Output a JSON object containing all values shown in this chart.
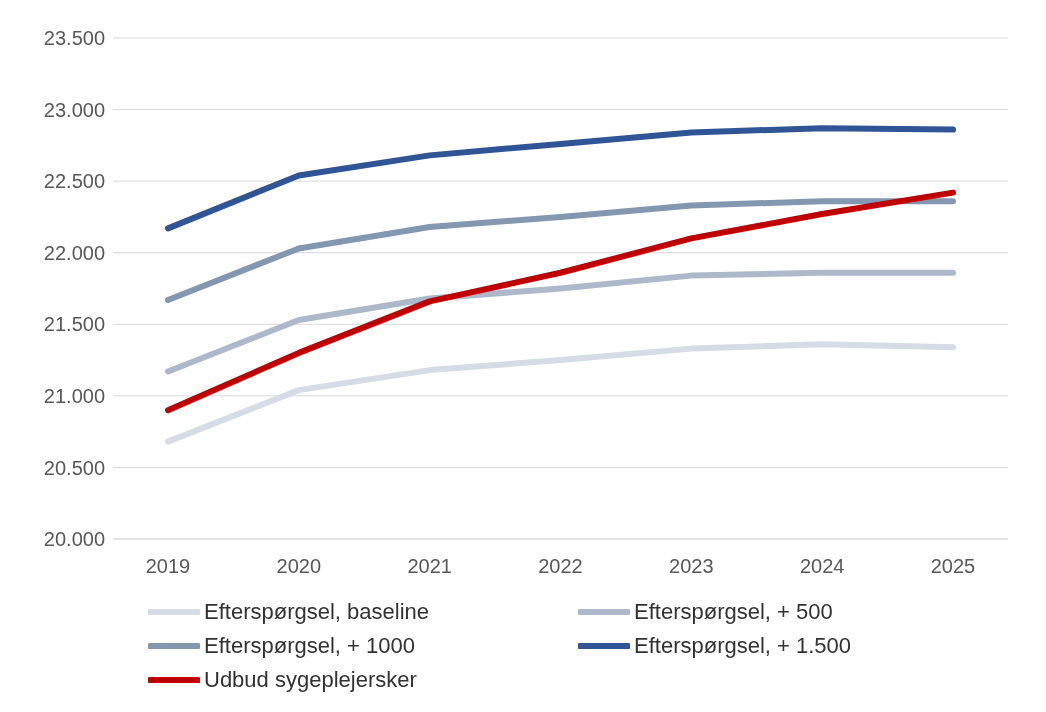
{
  "chart_data": {
    "type": "line",
    "categories": [
      "2019",
      "2020",
      "2021",
      "2022",
      "2023",
      "2024",
      "2025"
    ],
    "series": [
      {
        "name": "Efterspørgsel, baseline",
        "color": "#d6dce5",
        "values": [
          20680,
          21040,
          21180,
          21250,
          21330,
          21360,
          21340
        ]
      },
      {
        "name": "Efterspørgsel, + 500",
        "color": "#adb9ca",
        "values": [
          21170,
          21530,
          21680,
          21750,
          21840,
          21860,
          21860
        ]
      },
      {
        "name": "Efterspørgsel, + 1000",
        "color": "#8497b0",
        "values": [
          21670,
          22030,
          22180,
          22250,
          22330,
          22360,
          22360
        ]
      },
      {
        "name": "Efterspørgsel, + 1.500",
        "color": "#2f5597",
        "values": [
          22170,
          22540,
          22680,
          22760,
          22840,
          22870,
          22860
        ]
      },
      {
        "name": "Udbud sygeplejersker",
        "color": "#c00000",
        "values": [
          20900,
          21300,
          21660,
          21860,
          22100,
          22270,
          22420
        ]
      }
    ],
    "ylim": [
      20000,
      23500
    ],
    "yticks": [
      {
        "value": 20000,
        "label": "20.000"
      },
      {
        "value": 20500,
        "label": "20.500"
      },
      {
        "value": 21000,
        "label": "21.000"
      },
      {
        "value": 21500,
        "label": "21.500"
      },
      {
        "value": 22000,
        "label": "22.000"
      },
      {
        "value": 22500,
        "label": "22.500"
      },
      {
        "value": 23000,
        "label": "23.000"
      },
      {
        "value": 23500,
        "label": "23.500"
      }
    ],
    "grid": "y",
    "legend": "bottom",
    "marker": "none",
    "line_style": "solid"
  }
}
